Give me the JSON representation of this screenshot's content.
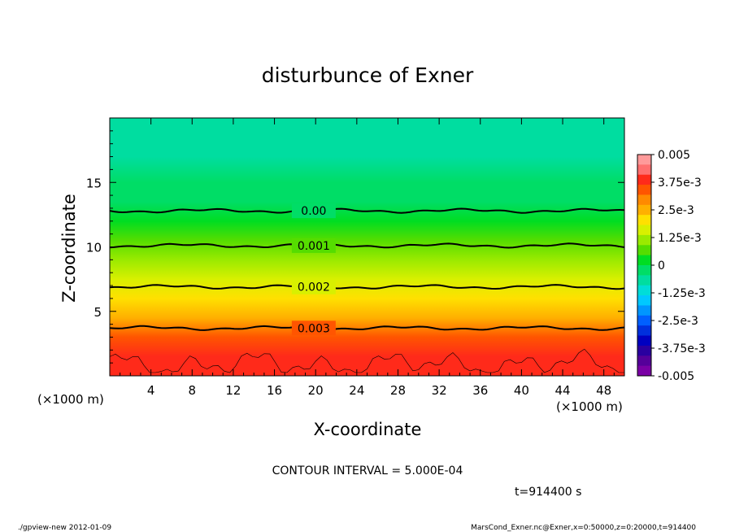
{
  "chart_data": {
    "type": "heatmap",
    "title": "disturbunce of Exner",
    "xlabel": "X-coordinate",
    "ylabel": "Z-coordinate",
    "x_unit_label": "(×1000 m)",
    "y_unit_label": "(×1000 m)",
    "xlim": [
      0,
      50
    ],
    "ylim": [
      0,
      20
    ],
    "x_ticks": [
      4,
      8,
      12,
      16,
      20,
      24,
      28,
      32,
      36,
      40,
      44,
      48
    ],
    "y_ticks": [
      5,
      10,
      15
    ],
    "contour_interval_text": "CONTOUR INTERVAL = 5.000E-04",
    "time_text": "t=914400 s",
    "colorbar": {
      "min": -0.005,
      "max": 0.005,
      "labels": [
        "0.005",
        "3.75e-3",
        "2.5e-3",
        "1.25e-3",
        "0",
        "-1.25e-3",
        "-2.5e-3",
        "-3.75e-3",
        "-0.005"
      ],
      "colors": [
        "#ff9a9a",
        "#ff6f6f",
        "#ff2a1a",
        "#ff5500",
        "#ff8a00",
        "#ffb000",
        "#ffe000",
        "#d8f000",
        "#9aea00",
        "#55dd00",
        "#00dd22",
        "#00dd66",
        "#00dda0",
        "#00ddd8",
        "#00c8ff",
        "#0096ff",
        "#0060ff",
        "#0030dd",
        "#0000c0",
        "#2a00a0",
        "#55009a",
        "#7a00a5"
      ]
    },
    "contours": [
      {
        "label": "0.00",
        "z_km": 12.8
      },
      {
        "label": "0.001",
        "z_km": 10.1
      },
      {
        "label": "0.002",
        "z_km": 6.9
      },
      {
        "label": "0.003",
        "z_km": 3.7
      }
    ],
    "field_profile": [
      {
        "z_km": 0.0,
        "value": 0.004
      },
      {
        "z_km": 1.5,
        "value": 0.0037
      },
      {
        "z_km": 3.0,
        "value": 0.0032
      },
      {
        "z_km": 4.5,
        "value": 0.0027
      },
      {
        "z_km": 6.0,
        "value": 0.0022
      },
      {
        "z_km": 7.5,
        "value": 0.00165
      },
      {
        "z_km": 9.0,
        "value": 0.00115
      },
      {
        "z_km": 10.5,
        "value": 0.00075
      },
      {
        "z_km": 12.0,
        "value": 0.00035
      },
      {
        "z_km": 13.5,
        "value": -5e-05
      },
      {
        "z_km": 15.0,
        "value": -0.0003
      },
      {
        "z_km": 17.0,
        "value": -0.00055
      },
      {
        "z_km": 20.0,
        "value": -0.00075
      }
    ],
    "grid": false,
    "legend": "right colorbar"
  },
  "footer": {
    "left": "./gpview-new   2012-01-09",
    "right": "MarsCond_Exner.nc@Exner,x=0:50000,z=0:20000,t=914400"
  }
}
